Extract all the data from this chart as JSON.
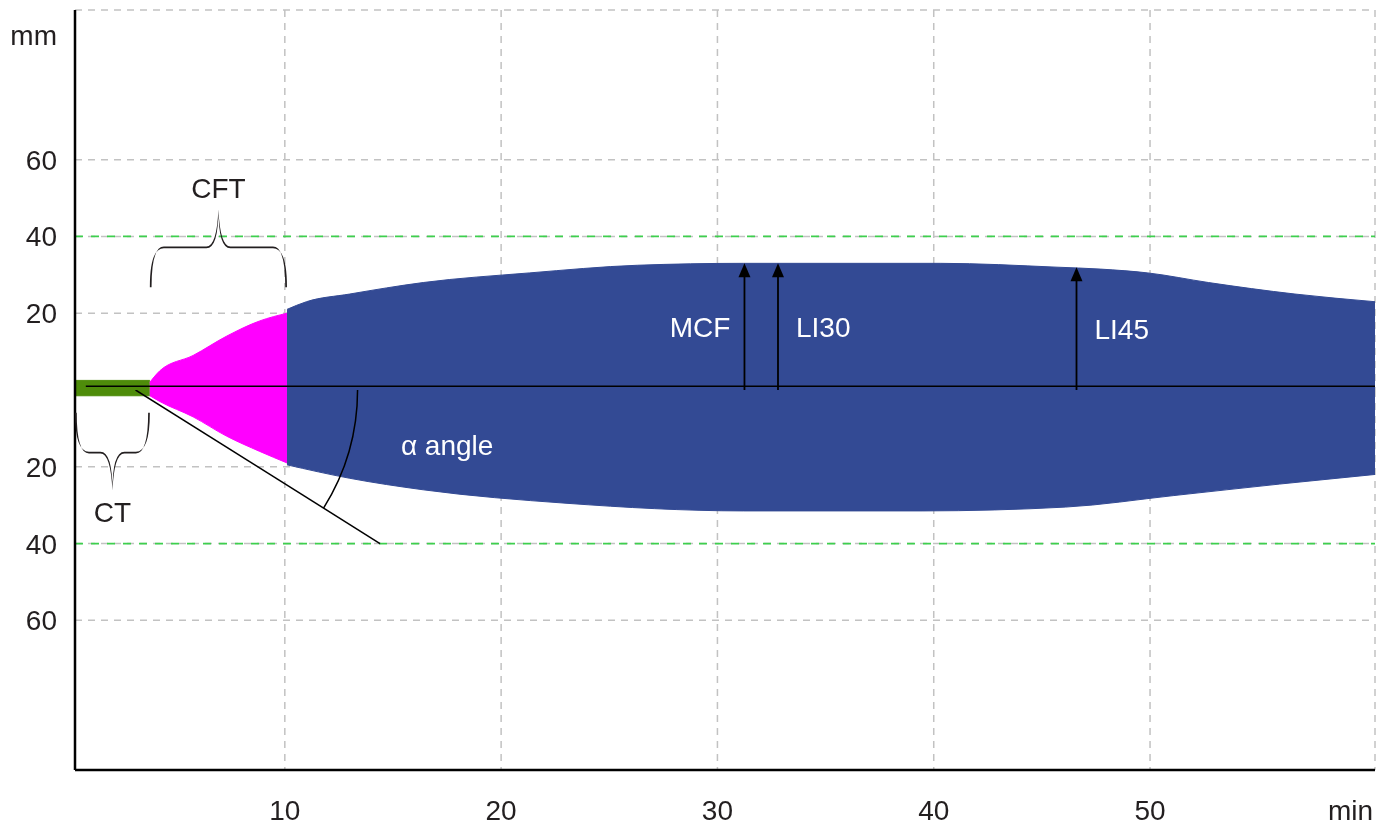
{
  "chart_data": [
    {
      "type": "area",
      "ylabel": "mm",
      "xlim": [
        0.3,
        60.4
      ],
      "ylim": [
        0,
        99
      ],
      "xticks": [
        10,
        20,
        30,
        40,
        50
      ],
      "yticks": [
        20,
        40,
        60
      ],
      "tick_labels": "y",
      "grid": true,
      "legend": false,
      "marker": "none",
      "series": [
        {
          "color": "#4e8c0a",
          "x": [
            0.3,
            3.76
          ],
          "values": [
            2.5,
            2.5
          ]
        },
        {
          "color": "#ff00ff",
          "x": [
            3.76,
            4.22,
            5.76,
            7.3,
            8.84,
            10.1
          ],
          "values": [
            2,
            5,
            9,
            14,
            18,
            20
          ]
        },
        {
          "color": "#334a94",
          "x": [
            10.1,
            11,
            13,
            16.4,
            21.3,
            26.3,
            31.2,
            40.3,
            45.7,
            47.7,
            49.9,
            52.7,
            56.7,
            60.4
          ],
          "values": [
            21,
            23,
            25,
            28,
            30.5,
            32.5,
            33,
            33,
            32,
            31.5,
            30.5,
            28,
            25,
            23
          ]
        },
        {
          "type": "line",
          "color": "#000000",
          "x": [
            0.8,
            60.4
          ],
          "values": [
            1,
            1
          ]
        }
      ],
      "ref_lines": [
        {
          "axis": "y",
          "value": 40,
          "color": "#3ecf4e",
          "line_style": "dashed"
        }
      ],
      "annotations": [
        "CFT",
        {
          "text": "MCF",
          "x": 31.25,
          "y": 33
        },
        {
          "text": "LI30",
          "x": 32.8,
          "y": 33
        },
        {
          "text": "LI45",
          "x": 46.6,
          "y": 32
        }
      ]
    },
    {
      "type": "area",
      "xlabel": "min",
      "xlim": [
        0.3,
        60.4
      ],
      "ylim": [
        99,
        0
      ],
      "xticks": [
        10,
        20,
        30,
        40,
        50
      ],
      "yticks": [
        20,
        40,
        60
      ],
      "grid": true,
      "legend": false,
      "marker": "none",
      "series": [
        {
          "color": "#4e8c0a",
          "x": [
            0.3,
            3.76
          ],
          "values": [
            1.5,
            1.5
          ]
        },
        {
          "color": "#ff00ff",
          "x": [
            3.76,
            4.22,
            5.76,
            7.3,
            8.84,
            10.1
          ],
          "values": [
            1.5,
            3,
            7,
            12,
            16,
            19
          ]
        },
        {
          "color": "#334a94",
          "x": [
            10.1,
            13,
            16.4,
            23,
            31.2,
            39.5,
            46.1,
            51.1,
            56,
            60.4
          ],
          "values": [
            19.5,
            23,
            26,
            29.5,
            31.5,
            31.5,
            30.5,
            27.5,
            24.5,
            22
          ]
        },
        {
          "type": "line",
          "color": "#000000",
          "x": [
            3.1,
            14.4
          ],
          "values": [
            0,
            40
          ]
        }
      ],
      "ref_lines": [
        {
          "axis": "y",
          "value": 40,
          "color": "#3ecf4e",
          "line_style": "dashed"
        }
      ],
      "annotations": [
        "CT",
        "α angle"
      ]
    }
  ]
}
